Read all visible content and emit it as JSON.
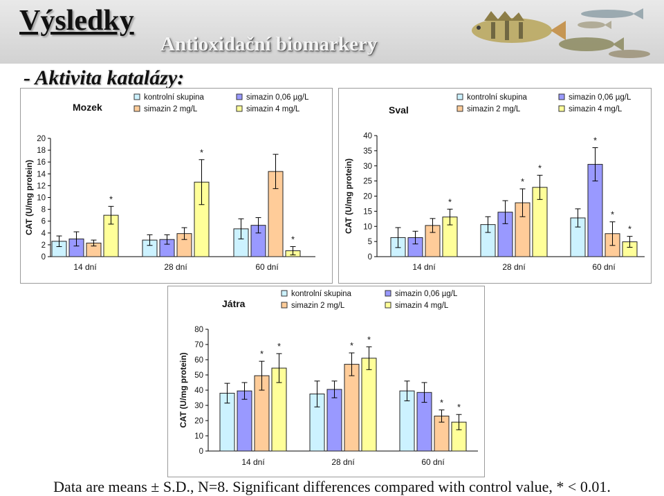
{
  "header": {
    "title": "Výsledky",
    "subtitle": "Antioxidační biomarkery",
    "section": "- Aktivita katalázy:"
  },
  "legend": {
    "items": [
      {
        "label": "kontrolní skupina",
        "color": "#ccf2ff"
      },
      {
        "label": "simazin 0,06 µg/L",
        "color": "#9999ff"
      },
      {
        "label": "simazin 2 mg/L",
        "color": "#ffcc99"
      },
      {
        "label": "simazin 4 mg/L",
        "color": "#ffff99"
      }
    ]
  },
  "chart_data": [
    {
      "type": "bar",
      "title": "Mozek",
      "ylabel": "CAT (U/mg protein)",
      "ylim": [
        0,
        20
      ],
      "yticks": [
        0,
        2,
        4,
        6,
        8,
        10,
        12,
        14,
        16,
        18,
        20
      ],
      "categories": [
        "14 dní",
        "28 dní",
        "60 dní"
      ],
      "legend_position": "top",
      "series": [
        {
          "name": "kontrolní skupina",
          "color": "#ccf2ff",
          "values": [
            2.6,
            2.8,
            4.7
          ],
          "errors": [
            0.9,
            0.9,
            1.7
          ],
          "significant": [
            false,
            false,
            false
          ]
        },
        {
          "name": "simazin 0,06 µg/L",
          "color": "#9999ff",
          "values": [
            3.0,
            2.9,
            5.3
          ],
          "errors": [
            1.2,
            0.8,
            1.3
          ],
          "significant": [
            false,
            false,
            false
          ]
        },
        {
          "name": "simazin 2 mg/L",
          "color": "#ffcc99",
          "values": [
            2.3,
            3.9,
            14.4
          ],
          "errors": [
            0.5,
            1.0,
            2.9
          ],
          "significant": [
            false,
            false,
            false
          ]
        },
        {
          "name": "simazin 4 mg/L",
          "color": "#ffff99",
          "values": [
            7.0,
            12.6,
            1.0
          ],
          "errors": [
            1.5,
            3.8,
            0.7
          ],
          "significant": [
            true,
            true,
            true
          ]
        }
      ]
    },
    {
      "type": "bar",
      "title": "Sval",
      "ylabel": "CAT (U/mg protein)",
      "ylim": [
        0,
        40
      ],
      "yticks": [
        0,
        5,
        10,
        15,
        20,
        25,
        30,
        35,
        40
      ],
      "categories": [
        "14 dní",
        "28 dní",
        "60 dní"
      ],
      "legend_position": "top",
      "series": [
        {
          "name": "kontrolní skupina",
          "color": "#ccf2ff",
          "values": [
            6.3,
            10.6,
            12.8
          ],
          "errors": [
            3.3,
            2.6,
            3.0
          ],
          "significant": [
            false,
            false,
            false
          ]
        },
        {
          "name": "simazin 0,06 µg/L",
          "color": "#9999ff",
          "values": [
            6.3,
            14.7,
            30.5
          ],
          "errors": [
            2.1,
            3.8,
            5.5
          ],
          "significant": [
            false,
            false,
            true
          ]
        },
        {
          "name": "simazin 2 mg/L",
          "color": "#ffcc99",
          "values": [
            10.3,
            17.8,
            7.6
          ],
          "errors": [
            2.3,
            4.6,
            3.9
          ],
          "significant": [
            false,
            true,
            true
          ]
        },
        {
          "name": "simazin 4 mg/L",
          "color": "#ffff99",
          "values": [
            13.1,
            22.9,
            4.9
          ],
          "errors": [
            2.6,
            4.0,
            1.8
          ],
          "significant": [
            true,
            true,
            true
          ]
        }
      ]
    },
    {
      "type": "bar",
      "title": "Játra",
      "ylabel": "CAT (U/mg protein)",
      "ylim": [
        0,
        80
      ],
      "yticks": [
        0,
        10,
        20,
        30,
        40,
        50,
        60,
        70,
        80
      ],
      "categories": [
        "14 dní",
        "28 dní",
        "60 dní"
      ],
      "legend_position": "top",
      "series": [
        {
          "name": "kontrolní skupina",
          "color": "#ccf2ff",
          "values": [
            38,
            37.5,
            39.5
          ],
          "errors": [
            6.5,
            8.5,
            6.5
          ],
          "significant": [
            false,
            false,
            false
          ]
        },
        {
          "name": "simazin 0,06 µg/L",
          "color": "#9999ff",
          "values": [
            39.5,
            40.5,
            38.5
          ],
          "errors": [
            5.5,
            5.5,
            6.5
          ],
          "significant": [
            false,
            false,
            false
          ]
        },
        {
          "name": "simazin 2 mg/L",
          "color": "#ffcc99",
          "values": [
            49.5,
            57,
            23
          ],
          "errors": [
            9.5,
            7.5,
            4.0
          ],
          "significant": [
            true,
            true,
            true
          ]
        },
        {
          "name": "simazin 4 mg/L",
          "color": "#ffff99",
          "values": [
            54.5,
            61,
            19
          ],
          "errors": [
            9.5,
            7.5,
            5.0
          ],
          "significant": [
            true,
            true,
            true
          ]
        }
      ]
    }
  ],
  "footnote": "Data are means ± S.D., N=8. Significant differences compared with control value, * < 0.01."
}
